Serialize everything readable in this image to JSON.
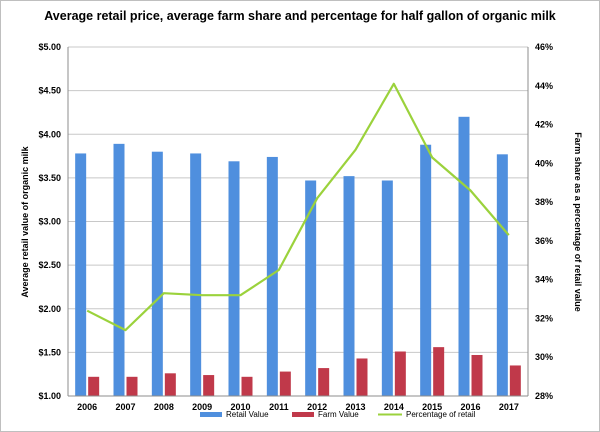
{
  "chart_data": {
    "type": "bar",
    "title": "Average retail price, average farm share and percentage for half gallon of organic milk",
    "categories": [
      "2006",
      "2007",
      "2008",
      "2009",
      "2010",
      "2011",
      "2012",
      "2013",
      "2014",
      "2015",
      "2016",
      "2017"
    ],
    "series": [
      {
        "name": "Retail Value",
        "axis": "left",
        "kind": "bar",
        "color": "#4f8fde",
        "values": [
          3.78,
          3.89,
          3.8,
          3.78,
          3.69,
          3.74,
          3.47,
          3.52,
          3.47,
          3.88,
          4.2,
          3.77
        ]
      },
      {
        "name": "Farm Value",
        "axis": "left",
        "kind": "bar",
        "color": "#c0394a",
        "values": [
          1.22,
          1.22,
          1.26,
          1.24,
          1.22,
          1.28,
          1.32,
          1.43,
          1.51,
          1.56,
          1.47,
          1.35
        ]
      },
      {
        "name": "Percentage of retail",
        "axis": "right",
        "kind": "line",
        "color": "#9bd23c",
        "values": [
          32.4,
          31.4,
          33.3,
          33.2,
          33.2,
          34.5,
          38.2,
          40.7,
          44.1,
          40.3,
          38.6,
          36.3
        ]
      }
    ],
    "ylabel": "Average retail value of organic milk",
    "y2label": "Farm share as a percentage of retail value",
    "ylim": [
      1.0,
      5.0
    ],
    "y2lim": [
      28,
      46
    ],
    "yticks": [
      "$1.00",
      "$1.50",
      "$2.00",
      "$2.50",
      "$3.00",
      "$3.50",
      "$4.00",
      "$4.50",
      "$5.00"
    ],
    "y2ticks": [
      "28%",
      "30%",
      "32%",
      "34%",
      "36%",
      "38%",
      "40%",
      "42%",
      "44%",
      "46%"
    ],
    "grid": true,
    "legend": "bottom"
  }
}
